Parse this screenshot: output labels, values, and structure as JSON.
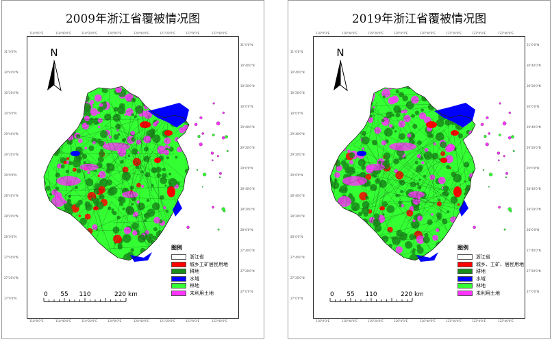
{
  "panels": [
    {
      "title": "2009年浙江省覆被情况图",
      "legend_title": "图例",
      "legend": [
        {
          "label": "浙江省",
          "color": "#ffffff"
        },
        {
          "label": "城乡工矿居民用地",
          "color": "#ff0000"
        },
        {
          "label": "耕地",
          "color": "#1a8c1a"
        },
        {
          "label": "水域",
          "color": "#0000ff"
        },
        {
          "label": "林地",
          "color": "#33ff33"
        },
        {
          "label": "未利用土地",
          "color": "#ff33ff"
        }
      ]
    },
    {
      "title": "2019年浙江省覆被情况图",
      "legend_title": "图例",
      "legend": [
        {
          "label": "浙江省",
          "color": "#ffffff"
        },
        {
          "label": "城乡、工矿、居民用地",
          "color": "#ff0000"
        },
        {
          "label": "耕地",
          "color": "#1a8c1a"
        },
        {
          "label": "水域",
          "color": "#0000ff"
        },
        {
          "label": "林地",
          "color": "#33ff33"
        },
        {
          "label": "未利用土地",
          "color": "#ff33ff"
        }
      ]
    }
  ],
  "north_label": "N",
  "scale": {
    "ticks": [
      "0",
      "55",
      "110",
      "220 km"
    ]
  },
  "graticule": {
    "top": [
      "118°0'0\"E",
      "118°40'0\"E",
      "119°20'0\"E",
      "120°0'0\"E",
      "120°40'0\"E",
      "121°20'0\"E",
      "122°0'0\"E",
      "122°40'0\"E"
    ],
    "left": [
      "31°0'0\"N",
      "30°40'0\"N",
      "30°20'0\"N",
      "30°0'0\"N",
      "29°40'0\"N",
      "29°20'0\"N",
      "29°0'0\"N",
      "28°40'0\"N",
      "28°20'0\"N",
      "28°0'0\"N",
      "27°40'0\"N",
      "27°20'0\"N",
      "27°0'0\"N"
    ]
  }
}
